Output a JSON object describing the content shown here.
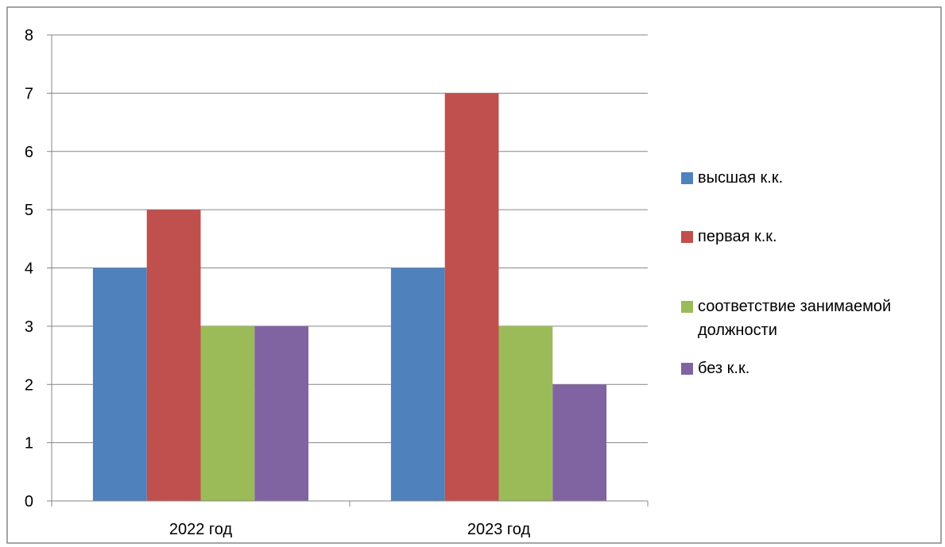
{
  "chart_data": {
    "type": "bar",
    "title": "",
    "xlabel": "",
    "ylabel": "",
    "categories": [
      "2022 год",
      "2023 год"
    ],
    "series": [
      {
        "name": "высшая к.к.",
        "values": [
          4,
          4
        ],
        "color": "#4F81BD"
      },
      {
        "name": "первая к.к.",
        "values": [
          5,
          7
        ],
        "color": "#C0504D"
      },
      {
        "name": "соответствие занимаемой должности",
        "legend_lines": [
          "соответствие занимаемой",
          "должности"
        ],
        "values": [
          3,
          3
        ],
        "color": "#9BBB59"
      },
      {
        "name": "без к.к.",
        "values": [
          3,
          2
        ],
        "color": "#8064A2"
      }
    ],
    "ylim": [
      0,
      8
    ],
    "y_ticks": [
      0,
      1,
      2,
      3,
      4,
      5,
      6,
      7,
      8
    ],
    "grid": true,
    "legend_position": "right"
  }
}
